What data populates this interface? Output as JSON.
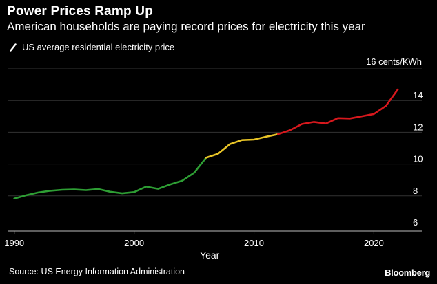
{
  "header": {
    "title": "Power Prices Ramp Up",
    "subtitle": "American households are paying record prices for electricity this year"
  },
  "footer": {
    "source": "Source: US Energy Information Administration",
    "brand": "Bloomberg"
  },
  "colors": {
    "background": "#000000",
    "green": "#2e9e34",
    "yellow": "#e8c427",
    "red": "#d8181d",
    "grid": "#333333"
  },
  "chart_data": {
    "type": "line",
    "title": "Power Prices Ramp Up",
    "subtitle": "American households are paying record prices for electricity this year",
    "xlabel": "Year",
    "ylabel": "",
    "y_unit_label": "16 cents/KWh",
    "xlim": [
      1989.5,
      2024
    ],
    "ylim": [
      6,
      16
    ],
    "x_ticks": [
      1990,
      2000,
      2010,
      2020
    ],
    "x_tick_labels": [
      "1990",
      "2000",
      "2010",
      "2020"
    ],
    "y_ticks": [
      6,
      8,
      10,
      12,
      14
    ],
    "y_tick_labels": [
      "6",
      "8",
      "10",
      "12",
      "14"
    ],
    "grid": true,
    "legend": "top-left",
    "series": [
      {
        "name": "US average residential electricity price",
        "x": [
          1990,
          1991,
          1992,
          1993,
          1994,
          1995,
          1996,
          1997,
          1998,
          1999,
          2000,
          2001,
          2002,
          2003,
          2004,
          2005,
          2006,
          2007,
          2008,
          2009,
          2010,
          2011,
          2012,
          2013,
          2014,
          2015,
          2016,
          2017,
          2018,
          2019,
          2020,
          2021,
          2022
        ],
        "y": [
          7.83,
          8.04,
          8.21,
          8.32,
          8.38,
          8.4,
          8.36,
          8.43,
          8.26,
          8.16,
          8.24,
          8.58,
          8.44,
          8.72,
          8.95,
          9.45,
          10.4,
          10.65,
          11.26,
          11.51,
          11.54,
          11.72,
          11.88,
          12.13,
          12.52,
          12.65,
          12.55,
          12.89,
          12.87,
          13.01,
          13.15,
          13.66,
          14.7
        ],
        "segment_colors": [
          {
            "from": 1990,
            "to": 2006,
            "color": "#2e9e34"
          },
          {
            "from": 2006,
            "to": 2012,
            "color": "#e8c427"
          },
          {
            "from": 2012,
            "to": 2022,
            "color": "#d8181d"
          }
        ]
      }
    ]
  }
}
